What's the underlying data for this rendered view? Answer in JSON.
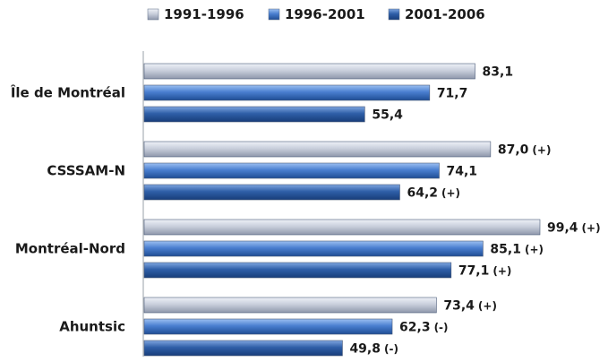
{
  "chart_data": {
    "type": "bar",
    "orientation": "horizontal",
    "title": "",
    "xlabel": "",
    "ylabel": "",
    "xlim": [
      0,
      115
    ],
    "grid": false,
    "legend_position": "top",
    "categories": [
      "Île de Montréal",
      "CSSSAM-N",
      "Montréal-Nord",
      "Ahuntsic"
    ],
    "series": [
      {
        "name": "1991-1996",
        "color": "#c9cfdc",
        "values": [
          83.1,
          87.0,
          99.4,
          73.4
        ],
        "labels": [
          "83,1",
          "87,0",
          "99,4",
          "73,4"
        ],
        "flags": [
          "",
          "(+)",
          "(+)",
          "(+)"
        ]
      },
      {
        "name": "1996-2001",
        "color": "#4a7fd0",
        "values": [
          71.7,
          74.1,
          85.1,
          62.3
        ],
        "labels": [
          "71,7",
          "74,1",
          "85,1",
          "62,3"
        ],
        "flags": [
          "",
          "",
          "(+)",
          "(-)"
        ]
      },
      {
        "name": "2001-2006",
        "color": "#2f5fa8",
        "values": [
          55.4,
          64.2,
          77.1,
          49.8
        ],
        "labels": [
          "55,4",
          "64,2",
          "77,1",
          "49,8"
        ],
        "flags": [
          "",
          "(+)",
          "(+)",
          "(-)"
        ]
      }
    ]
  }
}
